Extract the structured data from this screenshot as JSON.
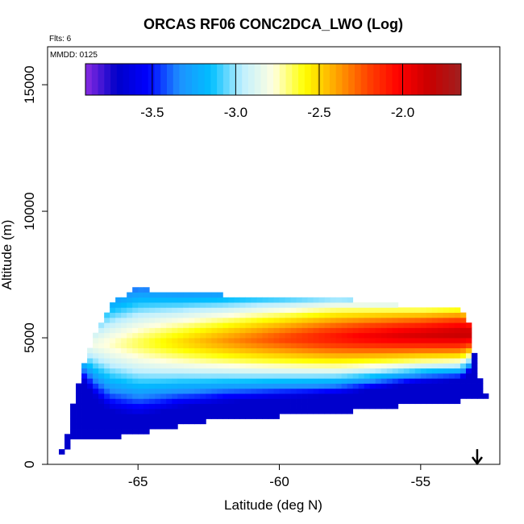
{
  "chart_data": {
    "type": "heatmap",
    "title": "ORCAS RF06 CONC2DCA_LWO (Log)",
    "subtitle_flights": "Flts: 6",
    "subtitle_date": "MMDD: 0125",
    "xlabel": "Latitude (deg N)",
    "ylabel": "Altitude (m)",
    "xlim": [
      -68.2,
      -52.2
    ],
    "ylim": [
      0,
      16500
    ],
    "x_ticks": [
      {
        "value": -65,
        "label": "-65"
      },
      {
        "value": -60,
        "label": "-60"
      },
      {
        "value": -55,
        "label": "-55"
      }
    ],
    "y_ticks": [
      {
        "value": 0,
        "label": "0"
      },
      {
        "value": 5000,
        "label": "5000"
      },
      {
        "value": 10000,
        "label": "10000"
      },
      {
        "value": 15000,
        "label": "15000"
      }
    ],
    "colorbar": {
      "range": [
        -3.9,
        -1.65
      ],
      "ticks": [
        {
          "value": -3.5,
          "label": "-3.5"
        },
        {
          "value": -3.0,
          "label": "-3.0"
        },
        {
          "value": -2.5,
          "label": "-2.5"
        },
        {
          "value": -2.0,
          "label": "-2.0"
        }
      ],
      "colors": [
        "#8a2be2",
        "#0000c8",
        "#0000ff",
        "#1e90ff",
        "#00bfff",
        "#bfefff",
        "#ffffe0",
        "#ffff00",
        "#ffa500",
        "#ff4500",
        "#ff0000",
        "#c80000",
        "#a02020"
      ]
    },
    "grid": false,
    "legend": "colorbar top",
    "field_description": {
      "lat_range": [
        -67.8,
        -52.6
      ],
      "columns": [
        {
          "lat": -67.6,
          "bottom": 500,
          "top": 600
        },
        {
          "lat": -67.3,
          "bottom": 1000,
          "top": 2300
        },
        {
          "lat": -67.0,
          "bottom": 1000,
          "top": 3700
        },
        {
          "lat": -66.5,
          "bottom": 1000,
          "top": 5200
        },
        {
          "lat": -66.0,
          "bottom": 1000,
          "top": 6300
        },
        {
          "lat": -65.0,
          "bottom": 1200,
          "top": 7000
        },
        {
          "lat": -63.5,
          "bottom": 1500,
          "top": 6700
        },
        {
          "lat": -62.0,
          "bottom": 1800,
          "top": 6700
        },
        {
          "lat": -60.0,
          "bottom": 1900,
          "top": 6600
        },
        {
          "lat": -58.0,
          "bottom": 2000,
          "top": 6600
        },
        {
          "lat": -56.6,
          "bottom": 2200,
          "top": 6400
        },
        {
          "lat": -55.0,
          "bottom": 2400,
          "top": 6200
        },
        {
          "lat": -53.6,
          "bottom": 2500,
          "top": 6200
        },
        {
          "lat": -53.3,
          "bottom": 2600,
          "top": 5700
        },
        {
          "lat": -53.0,
          "bottom": 2600,
          "top": 3700
        },
        {
          "lat": -52.7,
          "bottom": 2600,
          "top": 2800
        }
      ],
      "core_value": -1.8,
      "edge_value": -3.7,
      "core_altitude": 5200
    },
    "arrow_marker": {
      "lat": -53.0,
      "alt_top": 600,
      "alt_bottom": 0
    }
  }
}
